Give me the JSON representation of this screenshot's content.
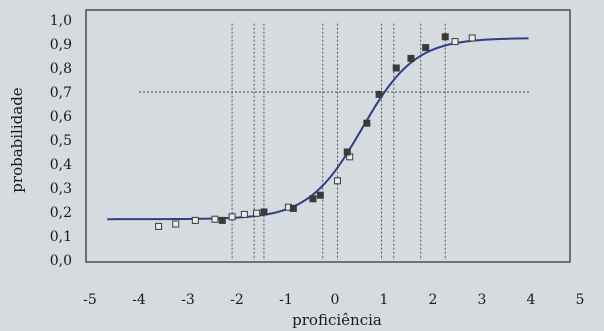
{
  "chart_data": {
    "type": "scatter",
    "xlabel": "proficiência",
    "ylabel": "probabilidade",
    "xlim": [
      -5,
      5
    ],
    "ylim": [
      0.0,
      1.0
    ],
    "x_ticks": [
      "-5",
      "-4",
      "-3",
      "-2",
      "-1",
      "0",
      "1",
      "2",
      "3",
      "4",
      "5"
    ],
    "y_ticks": [
      "0,0",
      "0,1",
      "0,2",
      "0,3",
      "0,4",
      "0,5",
      "0,6",
      "0,7",
      "0,8",
      "0,9",
      "1,0"
    ],
    "grid": false,
    "horizontal_reference_line": 0.7,
    "vertical_reference_lines": [
      -2.1,
      -1.65,
      -1.45,
      -0.25,
      0.05,
      0.95,
      1.2,
      1.75,
      2.25
    ],
    "curve": {
      "kind": "logistic",
      "guessing": 0.17,
      "upper": 0.925,
      "location": 0.55,
      "slope": 1.85,
      "x_range": [
        -4.65,
        3.95
      ]
    },
    "series": [
      {
        "marker": "hollow-square",
        "points": [
          {
            "x": -3.6,
            "y": 0.14
          },
          {
            "x": -3.25,
            "y": 0.15
          },
          {
            "x": -2.85,
            "y": 0.165
          },
          {
            "x": -2.45,
            "y": 0.17
          },
          {
            "x": -2.1,
            "y": 0.18
          },
          {
            "x": -1.85,
            "y": 0.19
          },
          {
            "x": -1.6,
            "y": 0.195
          },
          {
            "x": -0.95,
            "y": 0.22
          },
          {
            "x": 0.05,
            "y": 0.33
          },
          {
            "x": 0.3,
            "y": 0.43
          },
          {
            "x": 2.45,
            "y": 0.91
          },
          {
            "x": 2.8,
            "y": 0.925
          }
        ]
      },
      {
        "marker": "filled-square",
        "points": [
          {
            "x": -2.3,
            "y": 0.165
          },
          {
            "x": -1.45,
            "y": 0.2
          },
          {
            "x": -0.85,
            "y": 0.215
          },
          {
            "x": -0.45,
            "y": 0.255
          },
          {
            "x": -0.3,
            "y": 0.27
          },
          {
            "x": 0.25,
            "y": 0.45
          },
          {
            "x": 0.65,
            "y": 0.57
          },
          {
            "x": 0.9,
            "y": 0.69
          },
          {
            "x": 1.25,
            "y": 0.8
          },
          {
            "x": 1.55,
            "y": 0.84
          },
          {
            "x": 1.85,
            "y": 0.885
          },
          {
            "x": 2.25,
            "y": 0.93
          }
        ]
      }
    ]
  }
}
